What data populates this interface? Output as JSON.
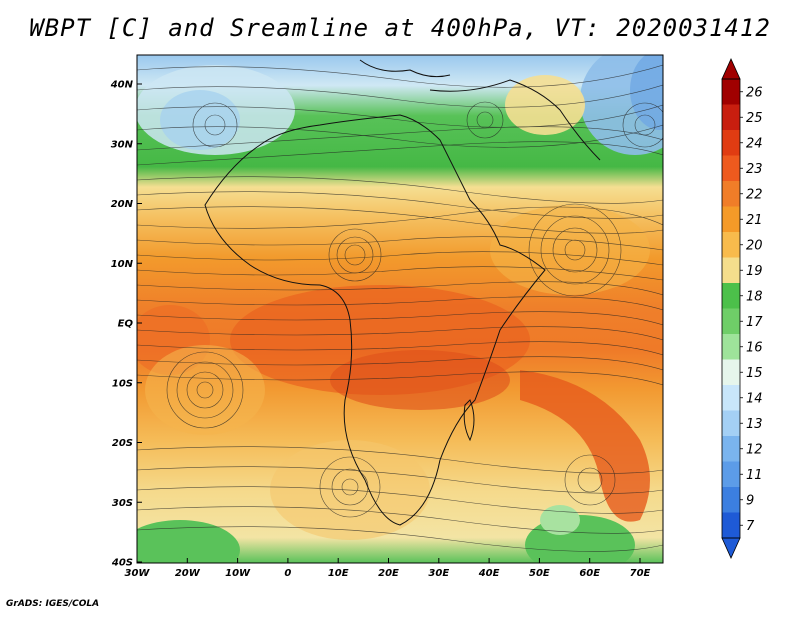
{
  "title": "WBPT [C] and Sreamline at 400hPa, VT: 2020031412",
  "credit": "GrADS: IGES/COLA",
  "map": {
    "lat_labels": [
      "40N",
      "30N",
      "20N",
      "10N",
      "EQ",
      "10S",
      "20S",
      "30S",
      "40S"
    ],
    "lon_labels": [
      "30W",
      "20W",
      "10W",
      "0",
      "10E",
      "20E",
      "30E",
      "40E",
      "50E",
      "60E",
      "70E"
    ]
  },
  "colorbar": {
    "levels": [
      "26",
      "25",
      "24",
      "23",
      "22",
      "21",
      "20",
      "19",
      "18",
      "17",
      "16",
      "15",
      "14",
      "13",
      "12",
      "11",
      "9",
      "7"
    ],
    "colors": [
      "#a00000",
      "#c81e0f",
      "#e03c12",
      "#ee5a1e",
      "#f07d28",
      "#f59a28",
      "#f8bb4c",
      "#f5de8c",
      "#4cc04a",
      "#6fce68",
      "#9ee39a",
      "#e6f6ec",
      "#c8e6fa",
      "#a4d0f5",
      "#7ab4ee",
      "#5c9ce8",
      "#3c7fe0",
      "#1e5ad6"
    ]
  }
}
